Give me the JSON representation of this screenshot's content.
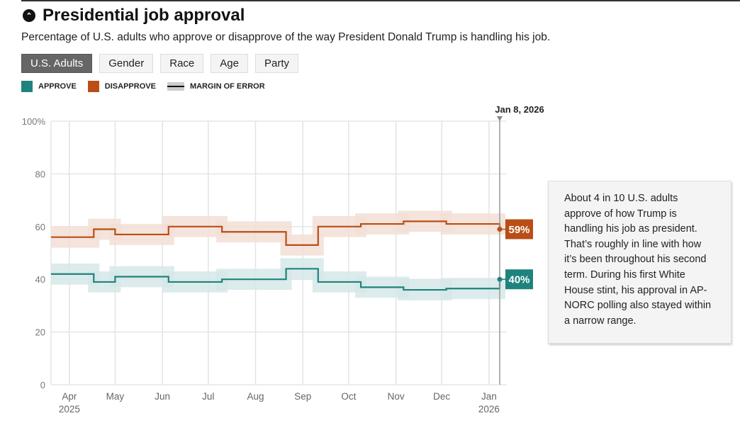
{
  "title": "Presidential job approval",
  "subtitle": "Percentage of U.S. adults who approve or disapprove of the way President Donald Trump is handling his job.",
  "tabs": [
    {
      "label": "U.S. Adults",
      "active": true
    },
    {
      "label": "Gender"
    },
    {
      "label": "Race"
    },
    {
      "label": "Age"
    },
    {
      "label": "Party"
    }
  ],
  "legend": {
    "approve": "APPROVE",
    "disapprove": "DISAPPROVE",
    "moe": "MARGIN OF ERROR"
  },
  "colors": {
    "approve": "#1e837d",
    "disapprove": "#b94e16"
  },
  "annotation": "About 4 in 10 U.S. adults approve of how Trump is handling his job as president. That’s roughly in line with how it’s been throughout his second term. During his first White House stint, his approval in AP-NORC polling also stayed within a narrow range.",
  "chart_data": {
    "type": "line",
    "step": true,
    "ylim": [
      0,
      100
    ],
    "yticks": [
      "0",
      "20",
      "40",
      "60",
      "80",
      "100%"
    ],
    "ytick_values": [
      0,
      20,
      40,
      60,
      80,
      100
    ],
    "xticks": [
      {
        "label": "Apr",
        "year": "2025",
        "date": "2025-04-01"
      },
      {
        "label": "May",
        "date": "2025-05-01"
      },
      {
        "label": "Jun",
        "date": "2025-06-01"
      },
      {
        "label": "Jul",
        "date": "2025-07-01"
      },
      {
        "label": "Aug",
        "date": "2025-08-01"
      },
      {
        "label": "Sep",
        "date": "2025-09-01"
      },
      {
        "label": "Oct",
        "date": "2025-10-01"
      },
      {
        "label": "Nov",
        "date": "2025-11-01"
      },
      {
        "label": "Dec",
        "date": "2025-12-01"
      },
      {
        "label": "Jan",
        "year": "2026",
        "date": "2026-01-01"
      }
    ],
    "xlim": [
      "2025-03-20",
      "2026-01-08"
    ],
    "marker": {
      "date": "2026-01-08",
      "label": "Jan 8, 2026"
    },
    "dates": [
      "2025-03-20",
      "2025-04-17",
      "2025-05-01",
      "2025-06-05",
      "2025-07-10",
      "2025-08-21",
      "2025-09-11",
      "2025-10-09",
      "2025-11-06",
      "2025-12-04"
    ],
    "moe": 4,
    "series": [
      {
        "name": "Approve",
        "values": [
          42,
          39,
          41,
          39,
          40,
          44,
          39,
          37,
          36,
          36.5
        ],
        "latest": 40,
        "latest_label": "40%"
      },
      {
        "name": "Disapprove",
        "values": [
          56,
          59,
          57,
          60,
          58,
          53,
          60,
          61,
          62,
          61
        ],
        "latest": 59,
        "latest_label": "59%"
      }
    ]
  }
}
